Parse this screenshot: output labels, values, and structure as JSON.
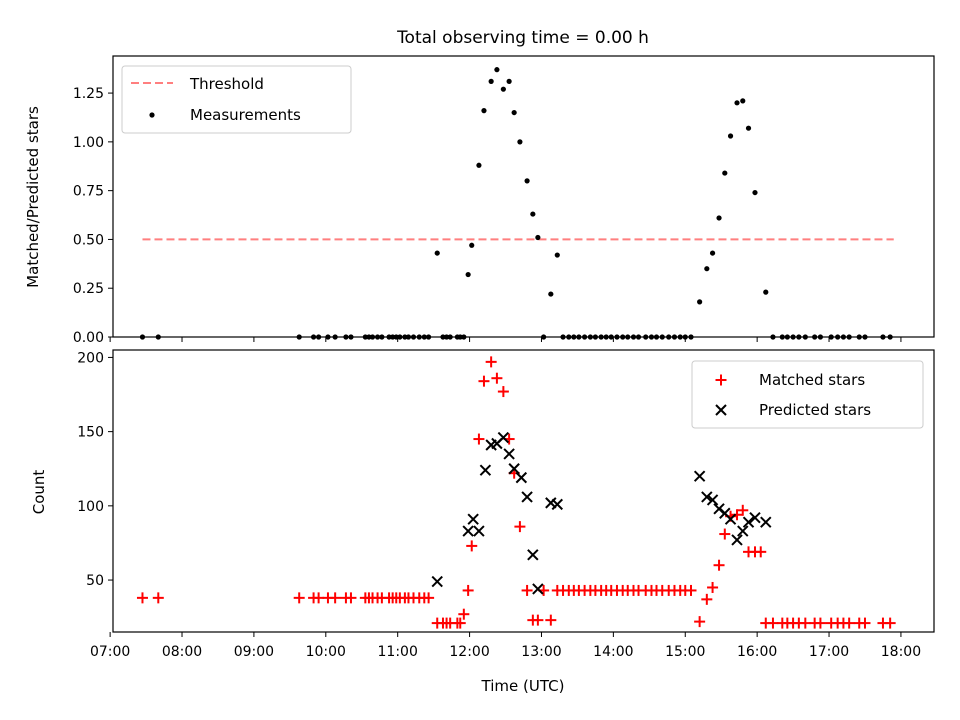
{
  "title": "Total observing time = 0.00 h",
  "colors": {
    "threshold": "#ff7f7f",
    "measurement": "#000000",
    "matched": "#ff0000",
    "predicted": "#000000",
    "axis": "#000000"
  },
  "chart_data": [
    {
      "type": "scatter",
      "panel": "top",
      "title": "Total observing time = 0.00 h",
      "xlabel": "",
      "ylabel": "Matched/Predicted stars",
      "xlim": [
        7.04,
        18.46
      ],
      "ylim": [
        0,
        1.44
      ],
      "y_ticks": [
        0,
        0.25,
        0.5,
        0.75,
        1.0,
        1.25
      ],
      "y_tick_labels": [
        "0.00",
        "0.25",
        "0.50",
        "0.75",
        "1.00",
        "1.25"
      ],
      "legend": [
        "Threshold",
        "Measurements"
      ],
      "legend_position": "upper left",
      "threshold": {
        "name": "Threshold",
        "y": 0.5,
        "x_range": [
          7.45,
          17.9
        ]
      },
      "measurements": {
        "name": "Measurements",
        "x": [
          7.45,
          7.67,
          9.63,
          9.83,
          9.9,
          10.03,
          10.13,
          10.28,
          10.35,
          10.55,
          10.6,
          10.65,
          10.72,
          10.78,
          10.88,
          10.93,
          10.98,
          11.03,
          11.1,
          11.15,
          11.22,
          11.3,
          11.37,
          11.43,
          11.55,
          11.63,
          11.68,
          11.73,
          11.83,
          11.87,
          11.92,
          11.98,
          12.03,
          12.13,
          12.2,
          12.3,
          12.38,
          12.47,
          12.55,
          12.62,
          12.7,
          12.8,
          12.88,
          12.95,
          13.03,
          13.13,
          13.22,
          13.3,
          13.38,
          13.45,
          13.52,
          13.6,
          13.68,
          13.75,
          13.83,
          13.9,
          13.97,
          14.05,
          14.13,
          14.2,
          14.28,
          14.35,
          14.45,
          14.53,
          14.6,
          14.68,
          14.77,
          14.85,
          14.93,
          15.0,
          15.08,
          15.2,
          15.3,
          15.38,
          15.47,
          15.55,
          15.63,
          15.72,
          15.8,
          15.88,
          15.97,
          16.12,
          16.22,
          16.35,
          16.42,
          16.5,
          16.58,
          16.67,
          16.8,
          16.88,
          17.03,
          17.12,
          17.2,
          17.28,
          17.42,
          17.5,
          17.75,
          17.85
        ],
        "y": [
          0,
          0,
          0,
          0,
          0,
          0,
          0,
          0,
          0,
          0,
          0,
          0,
          0,
          0,
          0,
          0,
          0,
          0,
          0,
          0,
          0,
          0,
          0,
          0,
          0.43,
          0,
          0,
          0,
          0,
          0,
          0,
          0.32,
          0.47,
          0.88,
          1.16,
          1.31,
          1.37,
          1.27,
          1.31,
          1.15,
          1.0,
          0.8,
          0.63,
          0.51,
          0,
          0.22,
          0.42,
          0,
          0,
          0,
          0,
          0,
          0,
          0,
          0,
          0,
          0,
          0,
          0,
          0,
          0,
          0,
          0,
          0,
          0,
          0,
          0,
          0,
          0,
          0,
          0,
          0.18,
          0.35,
          0.43,
          0.61,
          0.84,
          1.03,
          1.2,
          1.21,
          1.07,
          0.74,
          0.23,
          0,
          0,
          0,
          0,
          0,
          0,
          0,
          0,
          0,
          0,
          0,
          0,
          0,
          0,
          0,
          0
        ]
      }
    },
    {
      "type": "scatter",
      "panel": "bottom",
      "xlabel": "Time (UTC)",
      "ylabel": "Count",
      "xlim": [
        7.04,
        18.46
      ],
      "ylim": [
        15,
        205
      ],
      "x_ticks": [
        7,
        8,
        9,
        10,
        11,
        12,
        13,
        14,
        15,
        16,
        17,
        18
      ],
      "x_tick_labels": [
        "07:00",
        "08:00",
        "09:00",
        "10:00",
        "11:00",
        "12:00",
        "13:00",
        "14:00",
        "15:00",
        "16:00",
        "17:00",
        "18:00"
      ],
      "y_ticks": [
        50,
        100,
        150,
        200
      ],
      "y_tick_labels": [
        "50",
        "100",
        "150",
        "200"
      ],
      "legend": [
        "Matched stars",
        "Predicted stars"
      ],
      "legend_position": "upper right",
      "series": [
        {
          "name": "Matched stars",
          "marker": "+",
          "x": [
            7.45,
            7.67,
            9.63,
            9.83,
            9.9,
            10.03,
            10.13,
            10.28,
            10.35,
            10.55,
            10.6,
            10.65,
            10.72,
            10.78,
            10.88,
            10.93,
            10.98,
            11.03,
            11.1,
            11.15,
            11.22,
            11.3,
            11.37,
            11.43,
            11.55,
            11.63,
            11.68,
            11.73,
            11.83,
            11.87,
            11.92,
            11.98,
            12.03,
            12.13,
            12.2,
            12.3,
            12.38,
            12.47,
            12.55,
            12.62,
            12.7,
            12.8,
            12.88,
            12.95,
            13.03,
            13.13,
            13.22,
            13.3,
            13.38,
            13.45,
            13.52,
            13.6,
            13.68,
            13.75,
            13.83,
            13.9,
            13.97,
            14.05,
            14.13,
            14.2,
            14.28,
            14.35,
            14.45,
            14.53,
            14.6,
            14.68,
            14.77,
            14.85,
            14.93,
            15.0,
            15.08,
            15.2,
            15.3,
            15.38,
            15.47,
            15.55,
            15.63,
            15.72,
            15.8,
            15.88,
            15.97,
            16.05,
            16.12,
            16.22,
            16.35,
            16.42,
            16.5,
            16.58,
            16.67,
            16.8,
            16.88,
            17.03,
            17.12,
            17.2,
            17.28,
            17.42,
            17.5,
            17.75,
            17.85
          ],
          "values": [
            38,
            38,
            38,
            38,
            38,
            38,
            38,
            38,
            38,
            38,
            38,
            38,
            38,
            38,
            38,
            38,
            38,
            38,
            38,
            38,
            38,
            38,
            38,
            38,
            21,
            21,
            21,
            21,
            21,
            21,
            27,
            43,
            73,
            145,
            184,
            197,
            186,
            177,
            145,
            122,
            86,
            43,
            23,
            23,
            43,
            23,
            43,
            43,
            43,
            43,
            43,
            43,
            43,
            43,
            43,
            43,
            43,
            43,
            43,
            43,
            43,
            43,
            43,
            43,
            43,
            43,
            43,
            43,
            43,
            43,
            43,
            22,
            37,
            45,
            60,
            81,
            93,
            94,
            97,
            69,
            69,
            69,
            21,
            21,
            21,
            21,
            21,
            21,
            21,
            21,
            21,
            21,
            21,
            21,
            21,
            21,
            21,
            21,
            21
          ]
        },
        {
          "name": "Predicted stars",
          "marker": "x",
          "x": [
            11.55,
            11.98,
            12.05,
            12.13,
            12.22,
            12.3,
            12.38,
            12.47,
            12.55,
            12.62,
            12.72,
            12.8,
            12.88,
            12.95,
            13.13,
            13.22,
            15.2,
            15.3,
            15.38,
            15.47,
            15.55,
            15.63,
            15.72,
            15.8,
            15.88,
            15.97,
            16.12
          ],
          "values": [
            49,
            83,
            91,
            83,
            124,
            141,
            142,
            146,
            135,
            125,
            119,
            106,
            67,
            44,
            102,
            101,
            120,
            106,
            104,
            98,
            95,
            91,
            77,
            83,
            89,
            92,
            89
          ]
        }
      ]
    }
  ]
}
